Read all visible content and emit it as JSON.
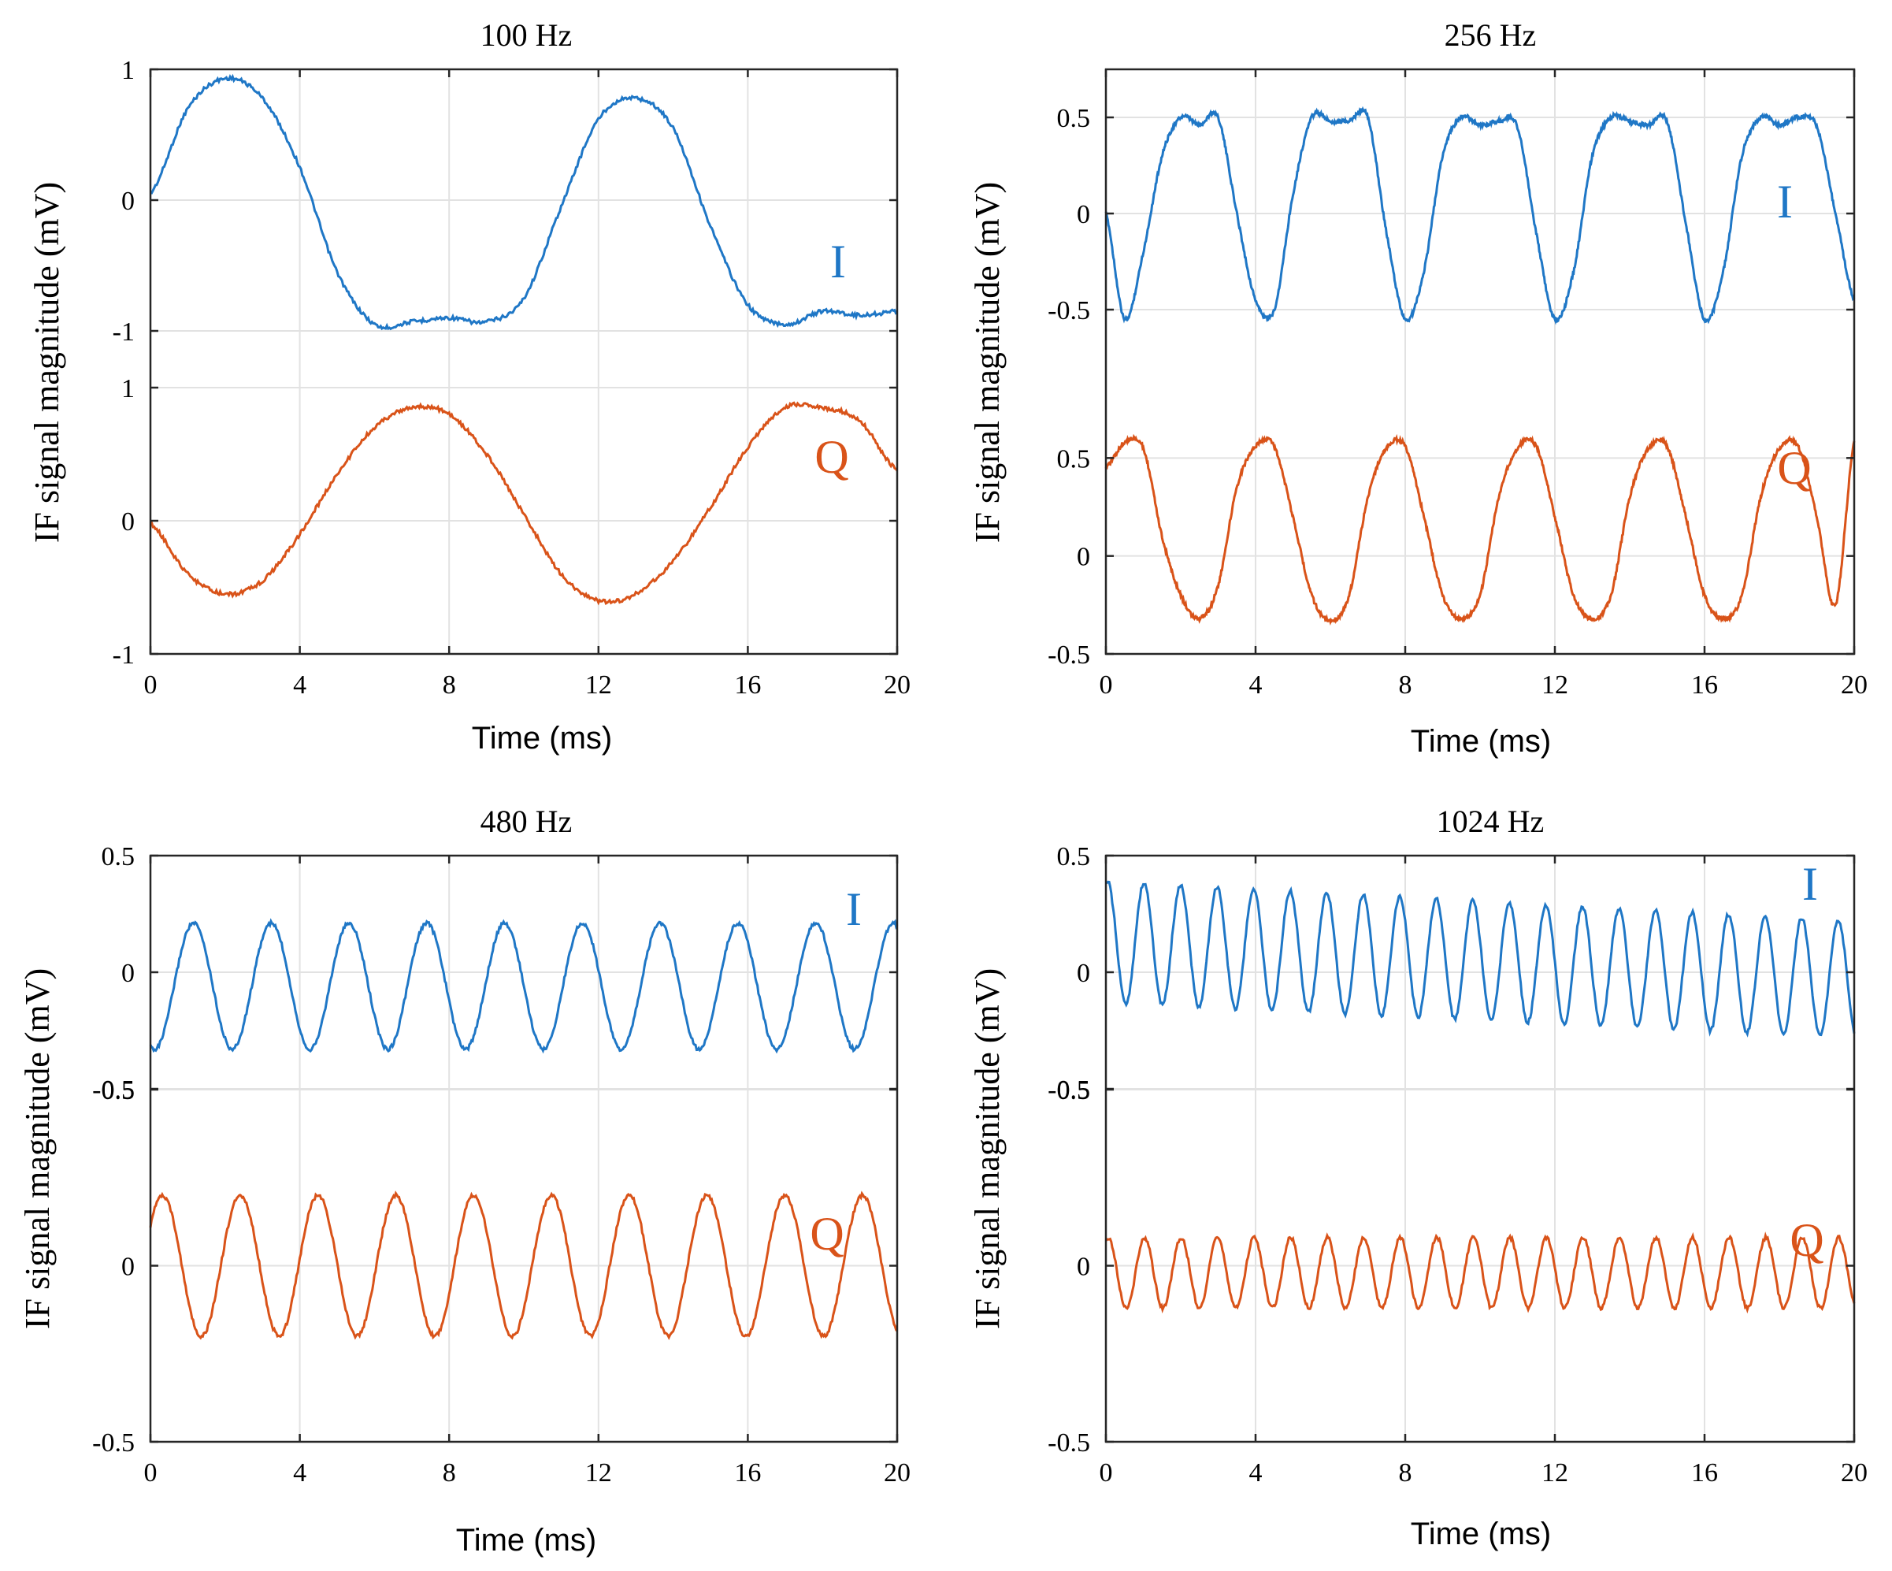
{
  "figure": {
    "background": "#ffffff"
  },
  "style": {
    "i_color": "#1f77c6",
    "q_color": "#d95319",
    "grid_color": "#e2e2e2",
    "axis_color": "#262626"
  },
  "chart_data": [
    {
      "type": "line",
      "title": "100 Hz",
      "xlabel": "Time (ms)",
      "ylabel": "IF signal magnitude (mV)",
      "xlim": [
        0,
        20
      ],
      "xticks": [
        0,
        4,
        8,
        12,
        16,
        20
      ],
      "xtick_labels": [
        "0",
        "4",
        "8",
        "12",
        "16",
        "20"
      ],
      "upper_ylim": [
        -1,
        1
      ],
      "upper_yticks": [
        -1,
        0,
        1
      ],
      "upper_ytick_labels": [
        "-1",
        "0",
        "1"
      ],
      "lower_ylim": [
        -1,
        1
      ],
      "lower_yticks": [
        -1,
        0,
        1
      ],
      "lower_ytick_labels": [
        "-1",
        "0",
        "1"
      ],
      "series": [
        {
          "name": "I",
          "label": "I",
          "x": [
            0,
            1,
            2,
            3,
            4,
            5,
            6,
            7,
            8,
            9,
            10,
            11,
            12,
            13,
            14,
            15,
            16,
            17,
            18,
            19,
            20
          ],
          "y": [
            0.05,
            0.7,
            0.93,
            0.78,
            0.25,
            -0.55,
            -0.95,
            -0.93,
            -0.9,
            -0.93,
            -0.75,
            -0.05,
            0.62,
            0.78,
            0.55,
            -0.2,
            -0.8,
            -0.95,
            -0.85,
            -0.88,
            -0.85
          ]
        },
        {
          "name": "Q",
          "label": "Q",
          "x": [
            0,
            1,
            2,
            3,
            4,
            5,
            6,
            7,
            8,
            9,
            10,
            11,
            12,
            13,
            14,
            15,
            16,
            17,
            18,
            19,
            20
          ],
          "y": [
            -0.02,
            -0.4,
            -0.55,
            -0.45,
            -0.1,
            0.35,
            0.7,
            0.85,
            0.8,
            0.5,
            0.05,
            -0.4,
            -0.6,
            -0.55,
            -0.3,
            0.1,
            0.55,
            0.85,
            0.85,
            0.75,
            0.38
          ]
        }
      ]
    },
    {
      "type": "line",
      "title": "256 Hz",
      "xlabel": "Time (ms)",
      "ylabel": "IF signal magnitude (mV)",
      "xlim": [
        0,
        20
      ],
      "xticks": [
        0,
        4,
        8,
        12,
        16,
        20
      ],
      "xtick_labels": [
        "0",
        "4",
        "8",
        "12",
        "16",
        "20"
      ],
      "upper_ylim": [
        -0.75,
        0.75
      ],
      "upper_yticks": [
        -0.5,
        0,
        0.5
      ],
      "upper_ytick_labels": [
        "-0.5",
        "0",
        "0.5"
      ],
      "lower_ylim": [
        -0.5,
        1.0
      ],
      "lower_yticks": [
        -0.5,
        0,
        0.5
      ],
      "lower_ytick_labels": [
        "-0.5",
        "0",
        "0.5"
      ],
      "series": [
        {
          "name": "I",
          "label": "I",
          "x": [
            0,
            0.5,
            1,
            1.5,
            2,
            2.5,
            3,
            3.5,
            4,
            4.5,
            5,
            5.5,
            6,
            6.5,
            7,
            7.5,
            8,
            8.5,
            9,
            9.5,
            10,
            10.5,
            11,
            11.5,
            12,
            12.5,
            13,
            13.5,
            14,
            14.5,
            15,
            15.5,
            16,
            16.5,
            17,
            17.5,
            18,
            18.5,
            19,
            19.5,
            20
          ],
          "y": [
            0.0,
            -0.55,
            -0.2,
            0.3,
            0.5,
            0.46,
            0.5,
            0.0,
            -0.45,
            -0.5,
            0.1,
            0.5,
            0.48,
            0.48,
            0.5,
            -0.1,
            -0.55,
            -0.3,
            0.3,
            0.5,
            0.46,
            0.48,
            0.45,
            -0.1,
            -0.55,
            -0.3,
            0.3,
            0.5,
            0.48,
            0.46,
            0.48,
            -0.05,
            -0.55,
            -0.3,
            0.3,
            0.5,
            0.46,
            0.5,
            0.45,
            0.0,
            -0.45
          ]
        },
        {
          "name": "Q",
          "label": "Q",
          "x": [
            0,
            0.5,
            1,
            1.5,
            2,
            2.5,
            3,
            3.5,
            4,
            4.5,
            5,
            5.5,
            6,
            6.5,
            7,
            7.5,
            8,
            8.5,
            9,
            9.5,
            10,
            10.5,
            11,
            11.5,
            12,
            12.5,
            13,
            13.5,
            14,
            14.5,
            15,
            15.5,
            16,
            16.5,
            17,
            17.5,
            18,
            18.5,
            19,
            19.5,
            20
          ],
          "y": [
            0.45,
            0.58,
            0.55,
            0.1,
            -0.2,
            -0.32,
            -0.15,
            0.35,
            0.56,
            0.56,
            0.2,
            -0.2,
            -0.33,
            -0.2,
            0.3,
            0.55,
            0.56,
            0.2,
            -0.2,
            -0.32,
            -0.2,
            0.3,
            0.55,
            0.56,
            0.2,
            -0.2,
            -0.32,
            -0.2,
            0.3,
            0.55,
            0.56,
            0.2,
            -0.2,
            -0.32,
            -0.2,
            0.3,
            0.55,
            0.56,
            0.2,
            -0.25,
            0.58
          ]
        }
      ]
    },
    {
      "type": "line",
      "title": "480 Hz",
      "xlabel": "Time (ms)",
      "ylabel": "IF signal magnitude (mV)",
      "xlim": [
        0,
        20
      ],
      "xticks": [
        0,
        4,
        8,
        12,
        16,
        20
      ],
      "xtick_labels": [
        "0",
        "4",
        "8",
        "12",
        "16",
        "20"
      ],
      "upper_ylim": [
        -0.5,
        0.5
      ],
      "upper_yticks": [
        -0.5,
        0,
        0.5
      ],
      "upper_ytick_labels": [
        "-0.5",
        "0",
        "0.5"
      ],
      "lower_ylim": [
        -0.5,
        0.5
      ],
      "lower_yticks": [
        -0.5,
        0,
        0.5
      ],
      "lower_ytick_labels": [
        "-0.5",
        "0",
        "0.5"
      ],
      "series": [
        {
          "name": "I",
          "label": "I",
          "kind": "sine",
          "freq_per_ms": 0.48,
          "offset": -0.06,
          "amplitude": 0.27,
          "phase": -1.9
        },
        {
          "name": "Q",
          "label": "Q",
          "kind": "sine",
          "freq_per_ms": 0.48,
          "offset": 0.0,
          "amplitude": 0.2,
          "phase": 0.6
        }
      ]
    },
    {
      "type": "line",
      "title": "1024 Hz",
      "xlabel": "Time (ms)",
      "ylabel": "IF signal magnitude (mV)",
      "xlim": [
        0,
        20
      ],
      "xticks": [
        0,
        4,
        8,
        12,
        16,
        20
      ],
      "xtick_labels": [
        "0",
        "4",
        "8",
        "12",
        "16",
        "20"
      ],
      "upper_ylim": [
        -0.5,
        0.5
      ],
      "upper_yticks": [
        -0.5,
        0,
        0.5
      ],
      "upper_ytick_labels": [
        "-0.5",
        "0",
        "0.5"
      ],
      "lower_ylim": [
        -0.5,
        0.5
      ],
      "lower_yticks": [
        -0.5,
        0,
        0.5
      ],
      "lower_ytick_labels": [
        "-0.5",
        "0",
        "0.5"
      ],
      "series": [
        {
          "name": "I",
          "label": "I",
          "kind": "sine",
          "freq_per_ms": 1.024,
          "offset_start": 0.13,
          "offset_end": -0.03,
          "amplitude_start": 0.26,
          "amplitude_end": 0.25,
          "phase": 1.3
        },
        {
          "name": "Q",
          "label": "Q",
          "kind": "sine",
          "freq_per_ms": 1.024,
          "offset": -0.02,
          "amplitude": 0.1,
          "phase": 1.2
        }
      ]
    }
  ]
}
